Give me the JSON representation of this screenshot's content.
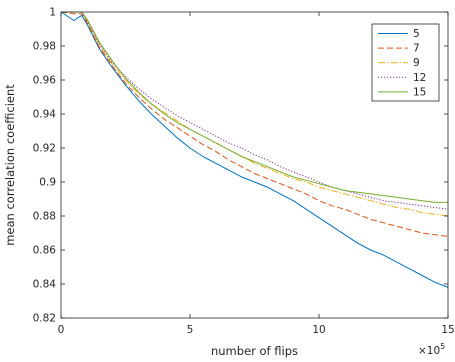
{
  "chart_data": {
    "type": "line",
    "title": "",
    "xlabel": "number of flips",
    "ylabel": "mean correlation coefficient",
    "x_scale_exponent": "×10",
    "x_scale_power": "5",
    "xlim": [
      0,
      15
    ],
    "ylim": [
      0.82,
      1.0
    ],
    "x_ticks": [
      "0",
      "5",
      "10",
      "15"
    ],
    "y_ticks": [
      "0.82",
      "0.84",
      "0.86",
      "0.88",
      "0.9",
      "0.92",
      "0.94",
      "0.96",
      "0.98",
      "1"
    ],
    "grid": false,
    "legend_position": "top-right",
    "x": [
      0,
      0.5,
      0.8,
      1,
      1.5,
      2,
      2.5,
      3,
      3.5,
      4,
      4.5,
      5,
      5.5,
      6,
      6.5,
      7,
      7.5,
      8,
      8.5,
      9,
      9.5,
      10,
      10.5,
      11,
      11.5,
      12,
      12.5,
      13,
      13.5,
      14,
      14.5,
      15
    ],
    "series": [
      {
        "name": "5",
        "color": "#0072bd",
        "dash": "solid",
        "values": [
          1.0,
          0.995,
          0.998,
          0.993,
          0.978,
          0.967,
          0.957,
          0.948,
          0.94,
          0.933,
          0.926,
          0.92,
          0.915,
          0.911,
          0.907,
          0.903,
          0.9,
          0.897,
          0.893,
          0.889,
          0.884,
          0.879,
          0.874,
          0.869,
          0.864,
          0.86,
          0.857,
          0.853,
          0.849,
          0.845,
          0.841,
          0.838
        ]
      },
      {
        "name": "7",
        "color": "#d95319",
        "dash": "6,3",
        "values": [
          1.0,
          0.999,
          0.999,
          0.994,
          0.979,
          0.968,
          0.958,
          0.95,
          0.943,
          0.937,
          0.932,
          0.927,
          0.922,
          0.918,
          0.913,
          0.909,
          0.905,
          0.902,
          0.899,
          0.896,
          0.893,
          0.889,
          0.886,
          0.884,
          0.881,
          0.878,
          0.876,
          0.874,
          0.872,
          0.87,
          0.869,
          0.868
        ]
      },
      {
        "name": "9",
        "color": "#edb120",
        "dash": "7,2,1.5,2",
        "values": [
          1.0,
          1.0,
          1.0,
          0.995,
          0.98,
          0.969,
          0.96,
          0.952,
          0.946,
          0.941,
          0.936,
          0.931,
          0.927,
          0.923,
          0.919,
          0.915,
          0.911,
          0.908,
          0.905,
          0.902,
          0.9,
          0.897,
          0.895,
          0.893,
          0.891,
          0.889,
          0.887,
          0.885,
          0.884,
          0.882,
          0.881,
          0.88
        ]
      },
      {
        "name": "12",
        "color": "#7e2f8e",
        "dash": "1.2,1.8",
        "values": [
          1.0,
          1.0,
          1.0,
          0.995,
          0.981,
          0.97,
          0.962,
          0.955,
          0.949,
          0.944,
          0.939,
          0.935,
          0.931,
          0.927,
          0.923,
          0.92,
          0.916,
          0.913,
          0.909,
          0.906,
          0.903,
          0.9,
          0.897,
          0.895,
          0.893,
          0.891,
          0.889,
          0.888,
          0.887,
          0.886,
          0.885,
          0.884
        ]
      },
      {
        "name": "15",
        "color": "#77ac30",
        "dash": "solid",
        "values": [
          1.0,
          1.0,
          1.0,
          0.996,
          0.982,
          0.971,
          0.961,
          0.953,
          0.946,
          0.94,
          0.935,
          0.931,
          0.927,
          0.923,
          0.919,
          0.915,
          0.912,
          0.909,
          0.906,
          0.903,
          0.901,
          0.899,
          0.897,
          0.895,
          0.894,
          0.893,
          0.892,
          0.891,
          0.89,
          0.889,
          0.888,
          0.888
        ]
      }
    ]
  }
}
